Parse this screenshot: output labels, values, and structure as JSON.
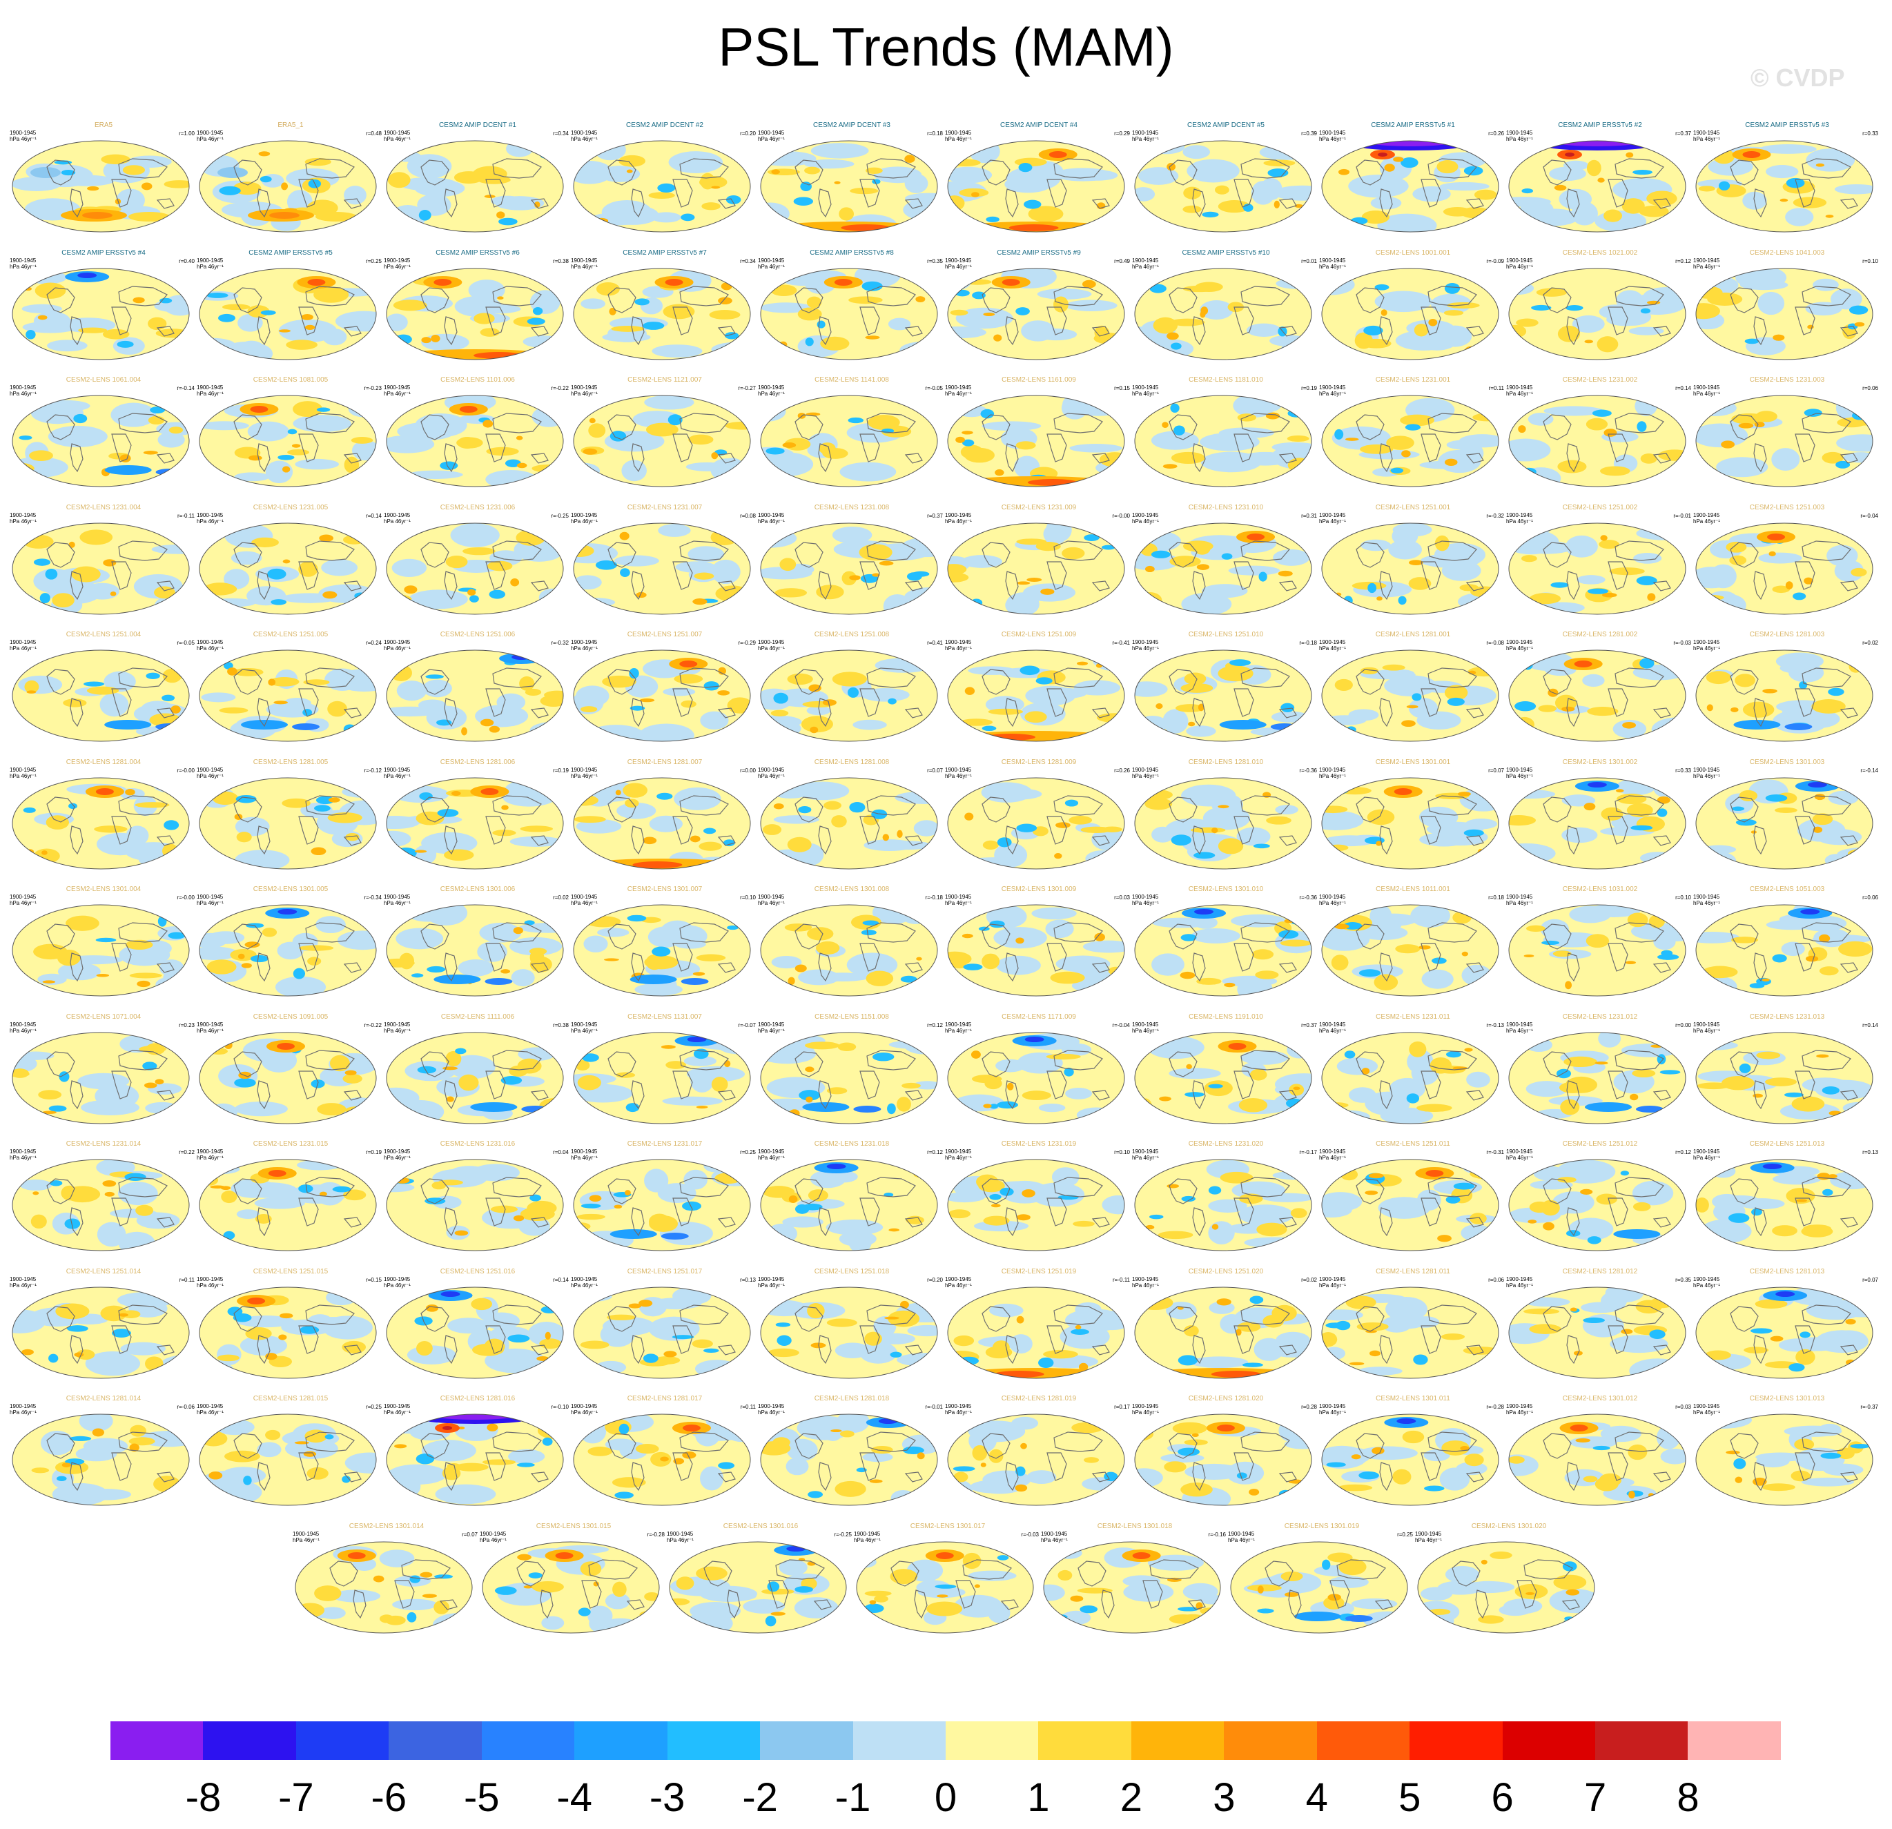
{
  "title": "PSL Trends (MAM)",
  "watermark": "© CVDP",
  "panel_defaults": {
    "period": "1900-1945",
    "unit": "hPa 46yr⁻¹"
  },
  "chart_data": {
    "type": "heatmap",
    "title": "PSL Trends (MAM)",
    "variable": "PSL",
    "season": "MAM",
    "units": "hPa 46yr⁻¹",
    "period": "1900-1945",
    "colorbar": {
      "ticks": [
        "-8",
        "-7",
        "-6",
        "-5",
        "-4",
        "-3",
        "-2",
        "-1",
        "0",
        "1",
        "2",
        "3",
        "4",
        "5",
        "6",
        "7",
        "8"
      ],
      "colors": [
        "#8a1ef0",
        "#2d12f0",
        "#1e3cf5",
        "#3c64e1",
        "#2882ff",
        "#1ea0ff",
        "#22beff",
        "#8cc8f0",
        "#bee0f5",
        "#fff8a0",
        "#ffdc3c",
        "#ffb40a",
        "#ff8c0a",
        "#ff5a0a",
        "#ff1e00",
        "#dc0000",
        "#c81e1e",
        "#ffb4b4"
      ]
    },
    "panels": [
      {
        "title": "ERA5",
        "r": "r=1.00",
        "pattern": "obs",
        "kind": "obs"
      },
      {
        "title": "ERA5_1",
        "r": "r=0.48",
        "pattern": "obs",
        "kind": "obs"
      },
      {
        "title": "CESM2 AMIP DCENT #1",
        "r": "r=0.34",
        "pattern": "mild",
        "kind": "amip"
      },
      {
        "title": "CESM2 AMIP DCENT #2",
        "r": "r=0.20",
        "pattern": "mild",
        "kind": "amip"
      },
      {
        "title": "CESM2 AMIP DCENT #3",
        "r": "r=0.18",
        "pattern": "south_red",
        "kind": "amip"
      },
      {
        "title": "CESM2 AMIP DCENT #4",
        "r": "r=0.29",
        "pattern": "north_red_south_red",
        "kind": "amip"
      },
      {
        "title": "CESM2 AMIP DCENT #5",
        "r": "r=0.39",
        "pattern": "mild",
        "kind": "amip"
      },
      {
        "title": "CESM2 AMIP ERSSTv5 #1",
        "r": "r=0.26",
        "pattern": "north_purple",
        "kind": "amip"
      },
      {
        "title": "CESM2 AMIP ERSSTv5 #2",
        "r": "r=0.37",
        "pattern": "north_purple",
        "kind": "amip"
      },
      {
        "title": "CESM2 AMIP ERSSTv5 #3",
        "r": "r=0.33",
        "pattern": "north_red",
        "kind": "amip"
      },
      {
        "title": "CESM2 AMIP ERSSTv5 #4",
        "r": "r=0.40",
        "pattern": "north_blue",
        "kind": "amip"
      },
      {
        "title": "CESM2 AMIP ERSSTv5 #5",
        "r": "r=0.25",
        "pattern": "north_red",
        "kind": "amip"
      },
      {
        "title": "CESM2 AMIP ERSSTv5 #6",
        "r": "r=0.38",
        "pattern": "north_red_south_red",
        "kind": "amip"
      },
      {
        "title": "CESM2 AMIP ERSSTv5 #7",
        "r": "r=0.34",
        "pattern": "north_red",
        "kind": "amip"
      },
      {
        "title": "CESM2 AMIP ERSSTv5 #8",
        "r": "r=0.35",
        "pattern": "north_red",
        "kind": "amip"
      },
      {
        "title": "CESM2 AMIP ERSSTv5 #9",
        "r": "r=0.49",
        "pattern": "north_red",
        "kind": "amip"
      },
      {
        "title": "CESM2 AMIP ERSSTv5 #10",
        "r": "r=0.01",
        "pattern": "mild",
        "kind": "amip"
      },
      {
        "title": "CESM2-LENS 1001.001",
        "r": "r=-0.09",
        "pattern": "mild",
        "kind": "lens"
      },
      {
        "title": "CESM2-LENS 1021.002",
        "r": "r=0.12",
        "pattern": "mild",
        "kind": "lens"
      },
      {
        "title": "CESM2-LENS 1041.003",
        "r": "r=0.10",
        "pattern": "mild",
        "kind": "lens"
      },
      {
        "title": "CESM2-LENS 1061.004",
        "r": "r=-0.14",
        "pattern": "south_blue",
        "kind": "lens"
      },
      {
        "title": "CESM2-LENS 1081.005",
        "r": "r=-0.23",
        "pattern": "north_red",
        "kind": "lens"
      },
      {
        "title": "CESM2-LENS 1101.006",
        "r": "r=-0.22",
        "pattern": "north_red",
        "kind": "lens"
      },
      {
        "title": "CESM2-LENS 1121.007",
        "r": "r=-0.27",
        "pattern": "mild",
        "kind": "lens"
      },
      {
        "title": "CESM2-LENS 1141.008",
        "r": "r=-0.05",
        "pattern": "mild",
        "kind": "lens"
      },
      {
        "title": "CESM2-LENS 1161.009",
        "r": "r=0.15",
        "pattern": "south_red",
        "kind": "lens"
      },
      {
        "title": "CESM2-LENS 1181.010",
        "r": "r=0.19",
        "pattern": "mild",
        "kind": "lens"
      },
      {
        "title": "CESM2-LENS 1231.001",
        "r": "r=0.11",
        "pattern": "mild",
        "kind": "lens"
      },
      {
        "title": "CESM2-LENS 1231.002",
        "r": "r=0.14",
        "pattern": "mild",
        "kind": "lens"
      },
      {
        "title": "CESM2-LENS 1231.003",
        "r": "r=0.06",
        "pattern": "mild",
        "kind": "lens"
      },
      {
        "title": "CESM2-LENS 1231.004",
        "r": "r=-0.11",
        "pattern": "mild",
        "kind": "lens"
      },
      {
        "title": "CESM2-LENS 1231.005",
        "r": "r=0.14",
        "pattern": "mild",
        "kind": "lens"
      },
      {
        "title": "CESM2-LENS 1231.006",
        "r": "r=-0.25",
        "pattern": "mild",
        "kind": "lens"
      },
      {
        "title": "CESM2-LENS 1231.007",
        "r": "r=0.08",
        "pattern": "mild",
        "kind": "lens"
      },
      {
        "title": "CESM2-LENS 1231.008",
        "r": "r=0.37",
        "pattern": "mild",
        "kind": "lens"
      },
      {
        "title": "CESM2-LENS 1231.009",
        "r": "r=-0.00",
        "pattern": "mild",
        "kind": "lens"
      },
      {
        "title": "CESM2-LENS 1231.010",
        "r": "r=0.31",
        "pattern": "north_red",
        "kind": "lens"
      },
      {
        "title": "CESM2-LENS 1251.001",
        "r": "r=-0.32",
        "pattern": "mild",
        "kind": "lens"
      },
      {
        "title": "CESM2-LENS 1251.002",
        "r": "r=-0.01",
        "pattern": "mild",
        "kind": "lens"
      },
      {
        "title": "CESM2-LENS 1251.003",
        "r": "r=-0.04",
        "pattern": "north_red",
        "kind": "lens"
      },
      {
        "title": "CESM2-LENS 1251.004",
        "r": "r=-0.05",
        "pattern": "south_blue",
        "kind": "lens"
      },
      {
        "title": "CESM2-LENS 1251.005",
        "r": "r=0.24",
        "pattern": "south_blue",
        "kind": "lens"
      },
      {
        "title": "CESM2-LENS 1251.006",
        "r": "r=-0.32",
        "pattern": "north_blue",
        "kind": "lens"
      },
      {
        "title": "CESM2-LENS 1251.007",
        "r": "r=-0.29",
        "pattern": "north_red",
        "kind": "lens"
      },
      {
        "title": "CESM2-LENS 1251.008",
        "r": "r=0.41",
        "pattern": "mild",
        "kind": "lens"
      },
      {
        "title": "CESM2-LENS 1251.009",
        "r": "r=-0.41",
        "pattern": "south_red",
        "kind": "lens"
      },
      {
        "title": "CESM2-LENS 1251.010",
        "r": "r=-0.18",
        "pattern": "south_blue",
        "kind": "lens"
      },
      {
        "title": "CESM2-LENS 1281.001",
        "r": "r=-0.08",
        "pattern": "mild",
        "kind": "lens"
      },
      {
        "title": "CESM2-LENS 1281.002",
        "r": "r=-0.03",
        "pattern": "north_red",
        "kind": "lens"
      },
      {
        "title": "CESM2-LENS 1281.003",
        "r": "r=0.02",
        "pattern": "south_blue",
        "kind": "lens"
      },
      {
        "title": "CESM2-LENS 1281.004",
        "r": "r=-0.00",
        "pattern": "north_red",
        "kind": "lens"
      },
      {
        "title": "CESM2-LENS 1281.005",
        "r": "r=-0.12",
        "pattern": "mild",
        "kind": "lens"
      },
      {
        "title": "CESM2-LENS 1281.006",
        "r": "r=0.19",
        "pattern": "north_red",
        "kind": "lens"
      },
      {
        "title": "CESM2-LENS 1281.007",
        "r": "r=0.00",
        "pattern": "south_red",
        "kind": "lens"
      },
      {
        "title": "CESM2-LENS 1281.008",
        "r": "r=0.07",
        "pattern": "mild",
        "kind": "lens"
      },
      {
        "title": "CESM2-LENS 1281.009",
        "r": "r=0.26",
        "pattern": "mild",
        "kind": "lens"
      },
      {
        "title": "CESM2-LENS 1281.010",
        "r": "r=-0.36",
        "pattern": "mild",
        "kind": "lens"
      },
      {
        "title": "CESM2-LENS 1301.001",
        "r": "r=0.07",
        "pattern": "north_red",
        "kind": "lens"
      },
      {
        "title": "CESM2-LENS 1301.002",
        "r": "r=0.33",
        "pattern": "north_blue",
        "kind": "lens"
      },
      {
        "title": "CESM2-LENS 1301.003",
        "r": "r=-0.14",
        "pattern": "north_blue",
        "kind": "lens"
      },
      {
        "title": "CESM2-LENS 1301.004",
        "r": "r=-0.00",
        "pattern": "mild",
        "kind": "lens"
      },
      {
        "title": "CESM2-LENS 1301.005",
        "r": "r=-0.34",
        "pattern": "north_blue",
        "kind": "lens"
      },
      {
        "title": "CESM2-LENS 1301.006",
        "r": "r=0.02",
        "pattern": "south_blue",
        "kind": "lens"
      },
      {
        "title": "CESM2-LENS 1301.007",
        "r": "r=0.10",
        "pattern": "south_blue",
        "kind": "lens"
      },
      {
        "title": "CESM2-LENS 1301.008",
        "r": "r=-0.18",
        "pattern": "mild",
        "kind": "lens"
      },
      {
        "title": "CESM2-LENS 1301.009",
        "r": "r=0.03",
        "pattern": "mild",
        "kind": "lens"
      },
      {
        "title": "CESM2-LENS 1301.010",
        "r": "r=-0.36",
        "pattern": "north_blue",
        "kind": "lens"
      },
      {
        "title": "CESM2-LENS 1011.001",
        "r": "r=0.18",
        "pattern": "mild",
        "kind": "lens"
      },
      {
        "title": "CESM2-LENS 1031.002",
        "r": "r=0.10",
        "pattern": "mild",
        "kind": "lens"
      },
      {
        "title": "CESM2-LENS 1051.003",
        "r": "r=0.06",
        "pattern": "north_blue",
        "kind": "lens"
      },
      {
        "title": "CESM2-LENS 1071.004",
        "r": "r=0.23",
        "pattern": "mild",
        "kind": "lens"
      },
      {
        "title": "CESM2-LENS 1091.005",
        "r": "r=-0.22",
        "pattern": "north_red",
        "kind": "lens"
      },
      {
        "title": "CESM2-LENS 1111.006",
        "r": "r=0.38",
        "pattern": "south_blue",
        "kind": "lens"
      },
      {
        "title": "CESM2-LENS 1131.007",
        "r": "r=-0.07",
        "pattern": "north_blue",
        "kind": "lens"
      },
      {
        "title": "CESM2-LENS 1151.008",
        "r": "r=0.12",
        "pattern": "south_blue",
        "kind": "lens"
      },
      {
        "title": "CESM2-LENS 1171.009",
        "r": "r=-0.04",
        "pattern": "north_blue",
        "kind": "lens"
      },
      {
        "title": "CESM2-LENS 1191.010",
        "r": "r=0.37",
        "pattern": "north_red",
        "kind": "lens"
      },
      {
        "title": "CESM2-LENS 1231.011",
        "r": "r=-0.13",
        "pattern": "mild",
        "kind": "lens"
      },
      {
        "title": "CESM2-LENS 1231.012",
        "r": "r=0.00",
        "pattern": "south_blue",
        "kind": "lens"
      },
      {
        "title": "CESM2-LENS 1231.013",
        "r": "r=0.14",
        "pattern": "mild",
        "kind": "lens"
      },
      {
        "title": "CESM2-LENS 1231.014",
        "r": "r=0.22",
        "pattern": "mild",
        "kind": "lens"
      },
      {
        "title": "CESM2-LENS 1231.015",
        "r": "r=0.19",
        "pattern": "north_red",
        "kind": "lens"
      },
      {
        "title": "CESM2-LENS 1231.016",
        "r": "r=0.04",
        "pattern": "mild",
        "kind": "lens"
      },
      {
        "title": "CESM2-LENS 1231.017",
        "r": "r=0.25",
        "pattern": "south_blue",
        "kind": "lens"
      },
      {
        "title": "CESM2-LENS 1231.018",
        "r": "r=0.12",
        "pattern": "north_blue",
        "kind": "lens"
      },
      {
        "title": "CESM2-LENS 1231.019",
        "r": "r=0.10",
        "pattern": "mild",
        "kind": "lens"
      },
      {
        "title": "CESM2-LENS 1231.020",
        "r": "r=-0.17",
        "pattern": "mild",
        "kind": "lens"
      },
      {
        "title": "CESM2-LENS 1251.011",
        "r": "r=-0.31",
        "pattern": "north_red",
        "kind": "lens"
      },
      {
        "title": "CESM2-LENS 1251.012",
        "r": "r=0.12",
        "pattern": "south_blue",
        "kind": "lens"
      },
      {
        "title": "CESM2-LENS 1251.013",
        "r": "r=0.13",
        "pattern": "north_blue",
        "kind": "lens"
      },
      {
        "title": "CESM2-LENS 1251.014",
        "r": "r=0.11",
        "pattern": "mild",
        "kind": "lens"
      },
      {
        "title": "CESM2-LENS 1251.015",
        "r": "r=0.15",
        "pattern": "north_red",
        "kind": "lens"
      },
      {
        "title": "CESM2-LENS 1251.016",
        "r": "r=0.14",
        "pattern": "north_blue",
        "kind": "lens"
      },
      {
        "title": "CESM2-LENS 1251.017",
        "r": "r=0.13",
        "pattern": "mild",
        "kind": "lens"
      },
      {
        "title": "CESM2-LENS 1251.018",
        "r": "r=0.20",
        "pattern": "mild",
        "kind": "lens"
      },
      {
        "title": "CESM2-LENS 1251.019",
        "r": "r=-0.11",
        "pattern": "south_red",
        "kind": "lens"
      },
      {
        "title": "CESM2-LENS 1251.020",
        "r": "r=0.02",
        "pattern": "south_red",
        "kind": "lens"
      },
      {
        "title": "CESM2-LENS 1281.011",
        "r": "r=0.06",
        "pattern": "mild",
        "kind": "lens"
      },
      {
        "title": "CESM2-LENS 1281.012",
        "r": "r=0.35",
        "pattern": "mild",
        "kind": "lens"
      },
      {
        "title": "CESM2-LENS 1281.013",
        "r": "r=0.07",
        "pattern": "north_blue",
        "kind": "lens"
      },
      {
        "title": "CESM2-LENS 1281.014",
        "r": "r=-0.06",
        "pattern": "mild",
        "kind": "lens"
      },
      {
        "title": "CESM2-LENS 1281.015",
        "r": "r=0.25",
        "pattern": "mild",
        "kind": "lens"
      },
      {
        "title": "CESM2-LENS 1281.016",
        "r": "r=-0.10",
        "pattern": "north_purple",
        "kind": "lens"
      },
      {
        "title": "CESM2-LENS 1281.017",
        "r": "r=0.11",
        "pattern": "north_red",
        "kind": "lens"
      },
      {
        "title": "CESM2-LENS 1281.018",
        "r": "r=-0.01",
        "pattern": "north_blue",
        "kind": "lens"
      },
      {
        "title": "CESM2-LENS 1281.019",
        "r": "r=0.17",
        "pattern": "mild",
        "kind": "lens"
      },
      {
        "title": "CESM2-LENS 1281.020",
        "r": "r=0.28",
        "pattern": "north_red",
        "kind": "lens"
      },
      {
        "title": "CESM2-LENS 1301.011",
        "r": "r=-0.28",
        "pattern": "north_blue",
        "kind": "lens"
      },
      {
        "title": "CESM2-LENS 1301.012",
        "r": "r=0.03",
        "pattern": "north_red",
        "kind": "lens"
      },
      {
        "title": "CESM2-LENS 1301.013",
        "r": "r=-0.37",
        "pattern": "mild",
        "kind": "lens"
      },
      {
        "title": "CESM2-LENS 1301.014",
        "r": "r=0.07",
        "pattern": "north_red",
        "kind": "lens"
      },
      {
        "title": "CESM2-LENS 1301.015",
        "r": "r=-0.28",
        "pattern": "north_red",
        "kind": "lens"
      },
      {
        "title": "CESM2-LENS 1301.016",
        "r": "r=-0.25",
        "pattern": "north_blue",
        "kind": "lens"
      },
      {
        "title": "CESM2-LENS 1301.017",
        "r": "r=-0.03",
        "pattern": "north_red",
        "kind": "lens"
      },
      {
        "title": "CESM2-LENS 1301.018",
        "r": "r=-0.16",
        "pattern": "north_red",
        "kind": "lens"
      },
      {
        "title": "CESM2-LENS 1301.019",
        "r": "r=0.25",
        "pattern": "south_blue",
        "kind": "lens"
      },
      {
        "title": "CESM2-LENS 1301.020",
        "r": "",
        "pattern": "mild",
        "kind": "lens"
      }
    ]
  }
}
